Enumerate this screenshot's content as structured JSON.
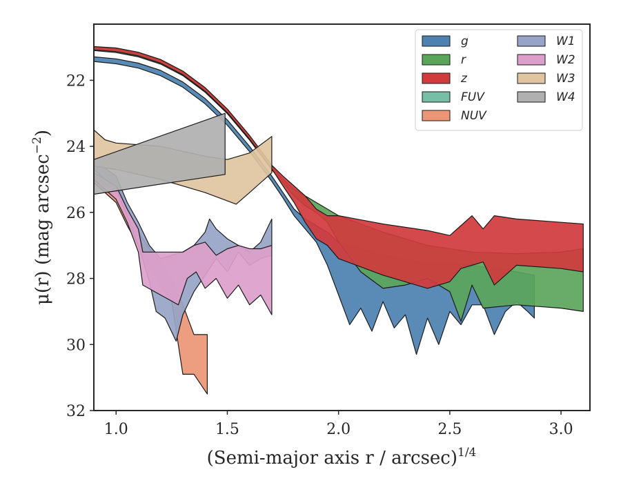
{
  "chart_data": {
    "type": "area",
    "xlabel": "(Semi-major axis r / arcsec)",
    "xlabel_sup": "1/4",
    "ylabel": "μ(r) (mag arcsec",
    "ylabel_sup": "−2",
    "ylabel_tail": ")",
    "xlim": [
      0.9,
      3.13
    ],
    "ylim": [
      32.0,
      20.3
    ],
    "y_inverted": true,
    "x_ticks": [
      1.0,
      1.5,
      2.0,
      2.5,
      3.0
    ],
    "x_tick_labels": [
      "1.0",
      "1.5",
      "2.0",
      "2.5",
      "3.0"
    ],
    "y_ticks": [
      22,
      24,
      26,
      28,
      30,
      32
    ],
    "y_tick_labels": [
      "22",
      "24",
      "26",
      "28",
      "30",
      "32"
    ],
    "grid": false,
    "legend_position": "top-right",
    "legend_columns": 2,
    "series": [
      {
        "name": "g",
        "label": "g",
        "color": "#4c81b0",
        "upper": [
          [
            0.9,
            21.29
          ],
          [
            1.0,
            21.35
          ],
          [
            1.1,
            21.48
          ],
          [
            1.2,
            21.7
          ],
          [
            1.3,
            22.05
          ],
          [
            1.4,
            22.55
          ],
          [
            1.5,
            23.2
          ],
          [
            1.6,
            24.0
          ],
          [
            1.7,
            24.9
          ],
          [
            1.75,
            25.4
          ],
          [
            1.8,
            25.9
          ],
          [
            1.85,
            26.2
          ],
          [
            1.9,
            26.4
          ],
          [
            1.95,
            26.6
          ],
          [
            2.0,
            26.9
          ],
          [
            2.1,
            27.1
          ],
          [
            2.2,
            27.3
          ],
          [
            2.3,
            27.45
          ],
          [
            2.4,
            27.55
          ],
          [
            2.5,
            27.55
          ],
          [
            2.6,
            27.6
          ],
          [
            2.7,
            27.7
          ],
          [
            2.8,
            27.8
          ],
          [
            2.88,
            27.9
          ]
        ],
        "lower": [
          [
            0.9,
            21.43
          ],
          [
            1.0,
            21.5
          ],
          [
            1.1,
            21.63
          ],
          [
            1.2,
            21.86
          ],
          [
            1.3,
            22.21
          ],
          [
            1.4,
            22.71
          ],
          [
            1.5,
            23.36
          ],
          [
            1.6,
            24.16
          ],
          [
            1.7,
            25.06
          ],
          [
            1.75,
            25.56
          ],
          [
            1.8,
            26.1
          ],
          [
            1.85,
            26.5
          ],
          [
            1.9,
            26.9
          ],
          [
            1.95,
            27.6
          ],
          [
            2.0,
            28.5
          ],
          [
            2.05,
            29.4
          ],
          [
            2.1,
            28.9
          ],
          [
            2.15,
            29.6
          ],
          [
            2.2,
            28.7
          ],
          [
            2.25,
            29.5
          ],
          [
            2.3,
            29.1
          ],
          [
            2.35,
            30.3
          ],
          [
            2.4,
            29.2
          ],
          [
            2.45,
            30.0
          ],
          [
            2.5,
            29.0
          ],
          [
            2.55,
            29.4
          ],
          [
            2.6,
            28.8
          ],
          [
            2.65,
            28.8
          ],
          [
            2.7,
            29.7
          ],
          [
            2.75,
            29.0
          ],
          [
            2.8,
            28.7
          ],
          [
            2.85,
            29.0
          ],
          [
            2.88,
            29.2
          ]
        ]
      },
      {
        "name": "r",
        "label": "r",
        "color": "#5ba55b",
        "upper": [
          [
            0.9,
            21.0
          ],
          [
            1.0,
            21.05
          ],
          [
            1.1,
            21.18
          ],
          [
            1.2,
            21.4
          ],
          [
            1.3,
            21.75
          ],
          [
            1.4,
            22.25
          ],
          [
            1.5,
            22.9
          ],
          [
            1.6,
            23.7
          ],
          [
            1.7,
            24.6
          ],
          [
            1.75,
            25.0
          ],
          [
            1.8,
            25.3
          ],
          [
            1.85,
            25.5
          ],
          [
            1.9,
            25.7
          ],
          [
            1.95,
            25.9
          ],
          [
            2.0,
            26.1
          ],
          [
            2.2,
            26.6
          ],
          [
            2.4,
            27.0
          ],
          [
            2.6,
            27.2
          ],
          [
            2.8,
            27.25
          ],
          [
            3.0,
            27.2
          ],
          [
            3.1,
            27.1
          ]
        ],
        "lower": [
          [
            0.9,
            21.1
          ],
          [
            1.0,
            21.16
          ],
          [
            1.1,
            21.29
          ],
          [
            1.2,
            21.51
          ],
          [
            1.3,
            21.86
          ],
          [
            1.4,
            22.36
          ],
          [
            1.5,
            23.01
          ],
          [
            1.6,
            23.81
          ],
          [
            1.7,
            24.71
          ],
          [
            1.75,
            25.1
          ],
          [
            1.8,
            25.5
          ],
          [
            1.85,
            25.8
          ],
          [
            1.9,
            26.0
          ],
          [
            1.95,
            26.3
          ],
          [
            2.0,
            26.9
          ],
          [
            2.1,
            27.8
          ],
          [
            2.2,
            28.3
          ],
          [
            2.3,
            28.2
          ],
          [
            2.4,
            28.0
          ],
          [
            2.5,
            28.4
          ],
          [
            2.55,
            29.3
          ],
          [
            2.6,
            28.2
          ],
          [
            2.65,
            28.9
          ],
          [
            2.8,
            28.8
          ],
          [
            3.0,
            28.9
          ],
          [
            3.1,
            29.0
          ]
        ]
      },
      {
        "name": "z",
        "label": "z",
        "color": "#d03b3d",
        "upper": [
          [
            0.9,
            20.98
          ],
          [
            1.0,
            21.02
          ],
          [
            1.1,
            21.15
          ],
          [
            1.2,
            21.37
          ],
          [
            1.3,
            21.72
          ],
          [
            1.4,
            22.22
          ],
          [
            1.5,
            22.87
          ],
          [
            1.6,
            23.67
          ],
          [
            1.7,
            24.57
          ],
          [
            1.75,
            24.9
          ],
          [
            1.8,
            25.2
          ],
          [
            1.85,
            25.5
          ],
          [
            1.9,
            25.9
          ],
          [
            1.95,
            26.1
          ],
          [
            2.0,
            26.1
          ],
          [
            2.2,
            26.35
          ],
          [
            2.4,
            26.55
          ],
          [
            2.5,
            26.7
          ],
          [
            2.55,
            26.4
          ],
          [
            2.6,
            26.1
          ],
          [
            2.65,
            26.5
          ],
          [
            2.7,
            26.1
          ],
          [
            2.8,
            26.2
          ],
          [
            3.0,
            26.3
          ],
          [
            3.1,
            26.35
          ]
        ],
        "lower": [
          [
            0.9,
            21.08
          ],
          [
            1.0,
            21.13
          ],
          [
            1.1,
            21.26
          ],
          [
            1.2,
            21.48
          ],
          [
            1.3,
            21.83
          ],
          [
            1.4,
            22.33
          ],
          [
            1.5,
            22.98
          ],
          [
            1.6,
            23.78
          ],
          [
            1.7,
            24.68
          ],
          [
            1.75,
            25.2
          ],
          [
            1.8,
            25.7
          ],
          [
            1.85,
            26.3
          ],
          [
            1.9,
            26.8
          ],
          [
            1.95,
            27.0
          ],
          [
            2.0,
            27.4
          ],
          [
            2.2,
            27.9
          ],
          [
            2.4,
            28.3
          ],
          [
            2.5,
            28.1
          ],
          [
            2.55,
            27.7
          ],
          [
            2.6,
            27.6
          ],
          [
            2.65,
            27.5
          ],
          [
            2.7,
            28.2
          ],
          [
            2.8,
            27.6
          ],
          [
            3.0,
            27.7
          ],
          [
            3.1,
            27.8
          ]
        ]
      },
      {
        "name": "FUV",
        "label": "FUV",
        "color": "#76bfa6",
        "upper": [
          [
            0.9,
            24.5
          ],
          [
            0.95,
            24.7
          ],
          [
            1.0,
            25.0
          ],
          [
            1.05,
            25.9
          ],
          [
            1.1,
            26.8
          ],
          [
            1.13,
            27.1
          ]
        ],
        "lower": [
          [
            0.9,
            24.7
          ],
          [
            0.95,
            24.95
          ],
          [
            1.0,
            25.4
          ],
          [
            1.05,
            26.3
          ],
          [
            1.1,
            27.0
          ],
          [
            1.13,
            27.3
          ]
        ]
      },
      {
        "name": "NUV",
        "label": "NUV",
        "color": "#eb9676",
        "upper": [
          [
            0.9,
            24.9
          ],
          [
            1.0,
            25.3
          ],
          [
            1.05,
            25.9
          ],
          [
            1.1,
            26.6
          ],
          [
            1.15,
            27.1
          ],
          [
            1.2,
            27.5
          ],
          [
            1.25,
            28.0
          ],
          [
            1.3,
            28.8
          ],
          [
            1.35,
            29.7
          ],
          [
            1.41,
            29.7
          ]
        ],
        "lower": [
          [
            0.9,
            25.1
          ],
          [
            1.0,
            25.7
          ],
          [
            1.05,
            26.4
          ],
          [
            1.1,
            27.0
          ],
          [
            1.15,
            27.6
          ],
          [
            1.2,
            28.2
          ],
          [
            1.25,
            28.7
          ],
          [
            1.3,
            30.9
          ],
          [
            1.35,
            30.9
          ],
          [
            1.41,
            31.5
          ]
        ]
      },
      {
        "name": "W1",
        "label": "W1",
        "color": "#97a4c7",
        "upper": [
          [
            0.9,
            24.4
          ],
          [
            1.0,
            24.9
          ],
          [
            1.05,
            25.7
          ],
          [
            1.1,
            26.3
          ],
          [
            1.15,
            27.0
          ],
          [
            1.2,
            27.4
          ],
          [
            1.3,
            27.2
          ],
          [
            1.35,
            27.0
          ],
          [
            1.4,
            26.6
          ],
          [
            1.42,
            26.2
          ],
          [
            1.45,
            26.5
          ],
          [
            1.5,
            26.8
          ],
          [
            1.55,
            27.0
          ],
          [
            1.6,
            27.2
          ],
          [
            1.65,
            26.9
          ],
          [
            1.7,
            26.2
          ]
        ],
        "lower": [
          [
            0.9,
            24.7
          ],
          [
            1.0,
            25.3
          ],
          [
            1.05,
            26.1
          ],
          [
            1.1,
            27.0
          ],
          [
            1.15,
            28.1
          ],
          [
            1.18,
            29.0
          ],
          [
            1.22,
            29.2
          ],
          [
            1.27,
            29.9
          ],
          [
            1.3,
            29.1
          ],
          [
            1.35,
            28.4
          ],
          [
            1.4,
            27.9
          ],
          [
            1.45,
            27.4
          ],
          [
            1.5,
            27.8
          ],
          [
            1.55,
            27.2
          ],
          [
            1.6,
            27.6
          ],
          [
            1.65,
            27.4
          ],
          [
            1.7,
            27.3
          ]
        ]
      },
      {
        "name": "W2",
        "label": "W2",
        "color": "#dc9fcb",
        "upper": [
          [
            0.9,
            24.8
          ],
          [
            1.0,
            25.2
          ],
          [
            1.05,
            25.9
          ],
          [
            1.1,
            26.5
          ],
          [
            1.12,
            27.2
          ],
          [
            1.2,
            27.2
          ],
          [
            1.3,
            27.2
          ],
          [
            1.35,
            27.0
          ],
          [
            1.4,
            26.9
          ],
          [
            1.45,
            27.3
          ],
          [
            1.5,
            27.1
          ],
          [
            1.55,
            27.0
          ],
          [
            1.6,
            27.1
          ],
          [
            1.65,
            27.1
          ],
          [
            1.7,
            27.0
          ]
        ],
        "lower": [
          [
            0.9,
            25.0
          ],
          [
            1.0,
            25.6
          ],
          [
            1.05,
            26.3
          ],
          [
            1.1,
            27.2
          ],
          [
            1.12,
            28.2
          ],
          [
            1.2,
            28.5
          ],
          [
            1.28,
            28.8
          ],
          [
            1.32,
            28.0
          ],
          [
            1.36,
            27.8
          ],
          [
            1.4,
            28.3
          ],
          [
            1.45,
            28.0
          ],
          [
            1.5,
            28.6
          ],
          [
            1.55,
            28.2
          ],
          [
            1.6,
            28.8
          ],
          [
            1.65,
            28.5
          ],
          [
            1.7,
            29.1
          ]
        ]
      },
      {
        "name": "W3",
        "label": "W3",
        "color": "#dfc49f",
        "upper": [
          [
            0.9,
            23.5
          ],
          [
            0.95,
            23.8
          ],
          [
            1.0,
            23.9
          ],
          [
            1.2,
            24.0
          ],
          [
            1.4,
            24.3
          ],
          [
            1.5,
            24.4
          ],
          [
            1.6,
            24.2
          ],
          [
            1.7,
            23.7
          ]
        ],
        "lower": [
          [
            0.9,
            24.6
          ],
          [
            1.0,
            24.7
          ],
          [
            1.2,
            25.0
          ],
          [
            1.4,
            25.4
          ],
          [
            1.54,
            25.75
          ],
          [
            1.6,
            25.4
          ],
          [
            1.7,
            24.8
          ]
        ]
      },
      {
        "name": "W4",
        "label": "W4",
        "color": "#b0b0b0",
        "upper": [
          [
            0.9,
            24.4
          ],
          [
            1.49,
            23.0
          ]
        ],
        "lower": [
          [
            0.9,
            25.45
          ],
          [
            1.49,
            24.85
          ]
        ]
      }
    ]
  }
}
